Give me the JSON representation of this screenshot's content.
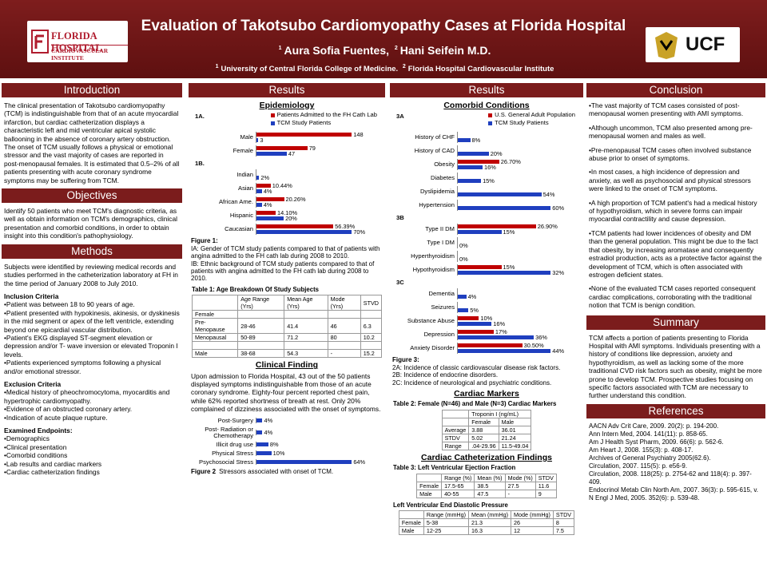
{
  "header": {
    "title": "Evaluation of Takotsubo Cardiomyopathy Cases at Florida Hospital",
    "authors": [
      {
        "sup": "1",
        "text": "Aura Sofia Fuentes,"
      },
      {
        "sup": "2",
        "text": "Hani Seifein M.D."
      }
    ],
    "affiliations": [
      {
        "sup": "1",
        "text": "University of Central Florida College of Medicine."
      },
      {
        "sup": "2",
        "text": "Florida Hospital Cardiovascular Institute"
      }
    ],
    "logo_left": {
      "name": "FLORIDA HOSPITAL",
      "sub": "CARDIOVASCULAR INSTITUTE"
    },
    "logo_right": "UCF"
  },
  "columns": [
    {
      "blocks": [
        {
          "banner": "Introduction"
        },
        {
          "text": "The clinical presentation of Takotsubo cardiomyopathy (TCM) is indistinguishable from that of an acute myocardial infarction, but cardiac catheterization displays a characteristic left and mid ventricular apical systolic ballooning in the absence of coronary artery obstruction. The onset of TCM usually follows a physical or emotional stressor and the vast majority of cases are reported in post-menopausal females. It is estimated that 0.5–2% of all patients presenting with acute coronary syndrome symptoms may be suffering from TCM."
        },
        {
          "banner": "Objectives"
        },
        {
          "text": "Identify 50 patients who meet TCM's diagnostic criteria, as well as obtain information on TCM's demographics, clinical presentation and comorbid conditions, in order to obtain insight into this condition's pathophysiology."
        },
        {
          "banner": "Methods"
        },
        {
          "text": "Subjects were identified by reviewing medical records and studies performed in the catheterization laboratory at FH in the time period of January 2008 to July  2010."
        },
        {
          "subheading": "Inclusion Criteria"
        },
        {
          "lines": [
            "•Patient was between 18 to 90 years of age.",
            "•Patient presented with hypokinesis, akinesis, or dyskinesis in the mid segment or apex of the left ventricle, extending beyond one epicardial vascular distribution.",
            "•Patient's EKG displayed ST-segment elevation or depression and/or T- wave inversion or elevated Troponin I levels.",
            "•Patients experienced symptoms following a physical and/or emotional stressor."
          ]
        },
        {
          "subheading": "Exclusion Criteria"
        },
        {
          "lines": [
            "•Medical history of pheochromocytoma, myocarditis and hypertrophic cardiomyopathy.",
            "•Evidence of an obstructed coronary artery.",
            "•Indication of acute plaque rupture."
          ]
        },
        {
          "subheading": "Examined Endpoints:"
        },
        {
          "lines": [
            "•Demographics",
            "•Clinical presentation",
            "•Comorbid conditions",
            "•Lab results and cardiac markers",
            "•Cardiac catheterization findings"
          ]
        }
      ]
    },
    {
      "blocks": [
        {
          "banner": "Results"
        },
        {
          "heading": "Epidemiology"
        },
        {
          "chart": {
            "type": "bar",
            "label": "1A.",
            "categories": [
              "Male",
              "Female"
            ],
            "series": [
              {
                "name": "Patients Admitted to the FH Cath Lab",
                "color": "#c00000",
                "values": [
                  148,
                  79
                ]
              },
              {
                "name": "TCM Study Patients",
                "color": "#1f3fbf",
                "values": [
                  3,
                  47
                ]
              }
            ]
          }
        },
        {
          "chart": {
            "type": "bar",
            "label": "1B.",
            "categories": [
              "Indian",
              "Asian",
              "African Ame.",
              "Hispanic",
              "Caucasian"
            ],
            "series": [
              {
                "color": "#c00000",
                "values": [
                  null,
                  10.44,
                  20.26,
                  14.1,
                  56.39
                ],
                "value_labels": [
                  null,
                  "10.44%",
                  "20.26%",
                  "14.10%",
                  "56.39%"
                ]
              },
              {
                "color": "#1f3fbf",
                "values": [
                  2,
                  4,
                  4,
                  20,
                  70
                ],
                "value_labels": [
                  "2%",
                  "4%",
                  "4%",
                  "20%",
                  "70%"
                ]
              }
            ]
          }
        },
        {
          "caption": {
            "label": "Figure 1:",
            "lines": [
              "IA: Gender of TCM study patients compared to that of patients with angina admitted to the FH cath lab during 2008 to 2010.",
              "IB: Ethnic background of TCM study patients compared to that of patients with angina admitted to the FH cath lab during 2008 to 2010."
            ]
          }
        },
        {
          "table": {
            "title": "Table 1: Age Breakdown Of Study Subjects",
            "header": [
              [
                null,
                "Age Range (Yrs)",
                "Mean Age (Yrs)",
                "Mode (Yrs)",
                "STVD"
              ]
            ],
            "rows": [
              [
                "Female",
                null,
                null,
                null,
                null
              ],
              [
                "Pre-Menopause",
                "28-46",
                "41.4",
                "46",
                "6.3"
              ],
              [
                "Menopausal",
                "50-89",
                "71.2",
                "80",
                "10.2"
              ],
              [
                null,
                null,
                null,
                null,
                null
              ],
              [
                "Male",
                "38-68",
                "54.3",
                "-",
                "15.2"
              ]
            ]
          }
        },
        {
          "heading": "Clinical Finding"
        },
        {
          "text": "Upon admission to Florida Hospital, 43 out of the 50 patients displayed symptoms indistinguishable from those of an acute coronary syndrome. Eighty-four percent reported chest pain, while 62% reported shortness of breath at rest. Only 20% complained of dizziness associated with the onset of symptoms."
        },
        {
          "chart": {
            "type": "bar",
            "categories": [
              "Post-Surgery",
              "Post- Radiation or Chemotherapy",
              "Illicit drug use",
              "Physical Stress",
              "Psychosocial Stress"
            ],
            "series": [
              {
                "color": "#1f3fbf",
                "values": [
                  4,
                  4,
                  8,
                  10,
                  64
                ],
                "value_labels": [
                  "4%",
                  "4%",
                  "8%",
                  "10%",
                  "64%"
                ]
              }
            ]
          }
        },
        {
          "caption": {
            "label": "Figure 2",
            "lines": [
              "Stressors associated with onset of TCM."
            ]
          }
        }
      ]
    },
    {
      "blocks": [
        {
          "banner": "Results"
        },
        {
          "heading": "Comorbid Conditions"
        },
        {
          "chart": {
            "type": "bar",
            "label": "3A",
            "categories": [
              "History of CHF",
              "History of CAD",
              "Obesity",
              "Diabetes",
              "Dyslipidemia",
              "Hypertension"
            ],
            "series": [
              {
                "name": "U.S. General Adult Population",
                "color": "#c00000",
                "values": [
                  null,
                  null,
                  26.7,
                  null,
                  null,
                  null
                ],
                "value_labels": [
                  null,
                  null,
                  "26.70%",
                  null,
                  null,
                  null
                ]
              },
              {
                "name": "TCM Study Patients",
                "color": "#1f3fbf",
                "values": [
                  8,
                  20,
                  16,
                  15,
                  54,
                  60
                ],
                "value_labels": [
                  "8%",
                  "20%",
                  "16%",
                  "15%",
                  "54%",
                  "60%"
                ]
              }
            ]
          }
        },
        {
          "chart": {
            "type": "bar",
            "label": "3B",
            "categories": [
              "Type II DM",
              "Type I DM",
              "Hyperthyroidism",
              "Hypothyroidism"
            ],
            "series": [
              {
                "color": "#c00000",
                "values": [
                  26.9,
                  null,
                  null,
                  15
                ],
                "value_labels": [
                  "26.90%",
                  null,
                  null,
                  "15%"
                ]
              },
              {
                "color": "#1f3fbf",
                "values": [
                  15,
                  0,
                  0,
                  32
                ],
                "value_labels": [
                  "15%",
                  "0%",
                  "0%",
                  "32%"
                ]
              }
            ]
          }
        },
        {
          "chart": {
            "type": "bar",
            "label": "3C",
            "categories": [
              "Dementia",
              "Seizures",
              "Substance Abuse",
              "Depression",
              "Anxiety Disorder"
            ],
            "series": [
              {
                "color": "#c00000",
                "values": [
                  null,
                  null,
                  10,
                  17,
                  30.5
                ],
                "value_labels": [
                  null,
                  null,
                  "10%",
                  "17%",
                  "30.50%"
                ]
              },
              {
                "color": "#1f3fbf",
                "values": [
                  4,
                  5,
                  16,
                  36,
                  44
                ],
                "value_labels": [
                  "4%",
                  "5%",
                  "16%",
                  "36%",
                  "44%"
                ]
              }
            ]
          }
        },
        {
          "caption": {
            "label": "Figure 3:",
            "lines": [
              "2A: Incidence of classic cardiovascular disease risk factors.",
              "2B: Incidence of endocrine disorders.",
              "2C: Incidence of neurological and psychiatric conditions."
            ]
          }
        },
        {
          "heading": "Cardiac Markers"
        },
        {
          "table": {
            "title": "Table 2: Female (N=46) and Male (N=3) Cardiac Markers",
            "header": [
              [
                null,
                "Troponin I (ng/mL)"
              ],
              [
                null,
                "Female",
                "Male"
              ]
            ],
            "rows": [
              [
                "Average",
                "3.88",
                "36.01"
              ],
              [
                "STDV",
                "5.02",
                "21.24"
              ],
              [
                "Range",
                ".04-29.96",
                "11.5-49.04"
              ]
            ]
          }
        },
        {
          "heading": "Cardiac Catheterization Findings"
        },
        {
          "table": {
            "title": "Table 3: Left Ventricular Ejection Fraction",
            "header": [
              [
                null,
                "Range (%)",
                "Mean (%)",
                "Mode (%)",
                "STDV"
              ]
            ],
            "rows": [
              [
                "Female",
                "17.5-65",
                "38.5",
                "27.5",
                "11.6"
              ],
              [
                "Male",
                "40-55",
                "47.5",
                "-",
                "9"
              ]
            ]
          }
        },
        {
          "table": {
            "title": "Left Ventricular End Diastolic Pressure",
            "header": [
              [
                null,
                "Range (mmHg)",
                "Mean (mmHg)",
                "Mode (mmHg)",
                "STDV"
              ]
            ],
            "rows": [
              [
                "Female",
                "5-38",
                "21.3",
                "26",
                "8"
              ],
              [
                "Male",
                "12-25",
                "16.3",
                "12",
                "7.5"
              ]
            ]
          }
        }
      ]
    },
    {
      "blocks": [
        {
          "banner": "Conclusion"
        },
        {
          "points": [
            "•The vast majority of TCM cases consisted of post-menopausal women presenting  with AMI symptoms.",
            "•Although uncommon, TCM also presented among pre-menopausal women and males as well.",
            "•Pre-menopausal TCM cases often involved substance abuse prior to onset of symptoms.",
            "•In most cases, a high incidence of depression and anxiety, as well as psychosocial and physical stressors were linked to the onset of TCM symptoms.",
            "•A high proportion of TCM patient's  had a medical history of hypothyroidism,  which in severe forms can impair  myocardial contractility and cause depression.",
            "•TCM patients had lower incidences of obesity and DM than the general population. This might be due to the fact that obesity, by increasing aromatase and consequently estradiol production, acts as a protective factor against the development of TCM, which is often associated with estrogen deficient  states.",
            "•None of the evaluated TCM cases reported consequent cardiac complications, corroborating  with the traditional  notion that TCM is benign condition."
          ]
        },
        {
          "banner": "Summary"
        },
        {
          "text": "TCM affects a portion of patients presenting to Florida Hospital with AMI symptoms. Individuals presenting with a history of conditions like depression, anxiety and hypothyroidism, as well as lacking some of the more traditional CVD risk factors such as obesity, might be more prone to develop TCM. Prospective studies focusing on specific factors associated with TCM are necessary to further understand this condition."
        },
        {
          "banner": "References"
        },
        {
          "refs": [
            "AACN Adv Crit Care, 2009. 20(2): p. 194-200.",
            "Ann Intern Med, 2004. 141(11): p. 858-65.",
            "Am J Health Syst Pharm, 2009. 66(6): p. 562-6.",
            "Am Heart J, 2008. 155(3): p. 408-17.",
            "Archives of General Psychiatry 2005(62.6).",
            "Circulation, 2007. 115(5): p. e56-9.",
            "Circulation, 2008. 118(25): p. 2754-62 and 118(4): p. 397-409.",
            "Endocrinol Metab Clin North Am, 2007. 36(3): p. 595-615, v.",
            "N Engl J Med, 2005. 352(6): p. 539-48."
          ]
        }
      ]
    }
  ]
}
